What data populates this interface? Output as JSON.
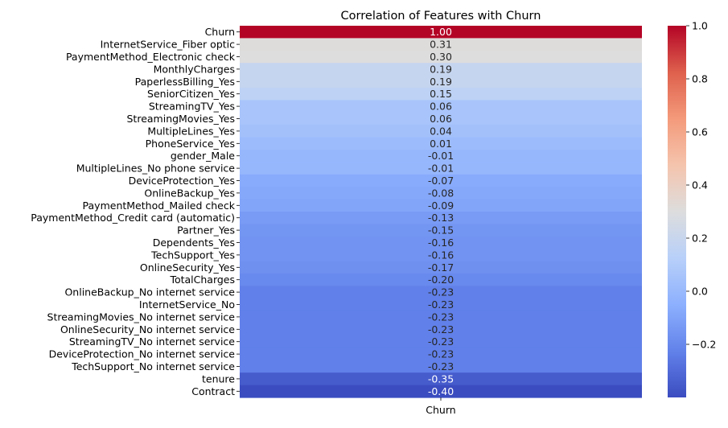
{
  "chart_data": {
    "type": "heatmap",
    "title": "Correlation of Features with Churn",
    "xlabel": "",
    "ylabel": "",
    "columns": [
      "Churn"
    ],
    "rows": [
      "Churn",
      "InternetService_Fiber optic",
      "PaymentMethod_Electronic check",
      "MonthlyCharges",
      "PaperlessBilling_Yes",
      "SeniorCitizen_Yes",
      "StreamingTV_Yes",
      "StreamingMovies_Yes",
      "MultipleLines_Yes",
      "PhoneService_Yes",
      "gender_Male",
      "MultipleLines_No phone service",
      "DeviceProtection_Yes",
      "OnlineBackup_Yes",
      "PaymentMethod_Mailed check",
      "PaymentMethod_Credit card (automatic)",
      "Partner_Yes",
      "Dependents_Yes",
      "TechSupport_Yes",
      "OnlineSecurity_Yes",
      "TotalCharges",
      "OnlineBackup_No internet service",
      "InternetService_No",
      "StreamingMovies_No internet service",
      "OnlineSecurity_No internet service",
      "StreamingTV_No internet service",
      "DeviceProtection_No internet service",
      "TechSupport_No internet service",
      "tenure",
      "Contract"
    ],
    "values": [
      1.0,
      0.31,
      0.3,
      0.19,
      0.19,
      0.15,
      0.06,
      0.06,
      0.04,
      0.01,
      -0.01,
      -0.01,
      -0.07,
      -0.08,
      -0.09,
      -0.13,
      -0.15,
      -0.16,
      -0.16,
      -0.17,
      -0.2,
      -0.23,
      -0.23,
      -0.23,
      -0.23,
      -0.23,
      -0.23,
      -0.23,
      -0.35,
      -0.4
    ],
    "annotations": [
      "1.00",
      "0.31",
      "0.30",
      "0.19",
      "0.19",
      "0.15",
      "0.06",
      "0.06",
      "0.04",
      "0.01",
      "-0.01",
      "-0.01",
      "-0.07",
      "-0.08",
      "-0.09",
      "-0.13",
      "-0.15",
      "-0.16",
      "-0.16",
      "-0.17",
      "-0.20",
      "-0.23",
      "-0.23",
      "-0.23",
      "-0.23",
      "-0.23",
      "-0.23",
      "-0.23",
      "-0.35",
      "-0.40"
    ],
    "colormap": "coolwarm",
    "vmin": -0.4,
    "vmax": 1.0,
    "colorbar_ticks": [
      1.0,
      0.8,
      0.6,
      0.4,
      0.2,
      0.0,
      -0.2
    ],
    "colorbar_tick_labels": [
      "1.0",
      "0.8",
      "0.6",
      "0.4",
      "0.2",
      "0.0",
      "−0.2"
    ],
    "legend_position": "right"
  }
}
